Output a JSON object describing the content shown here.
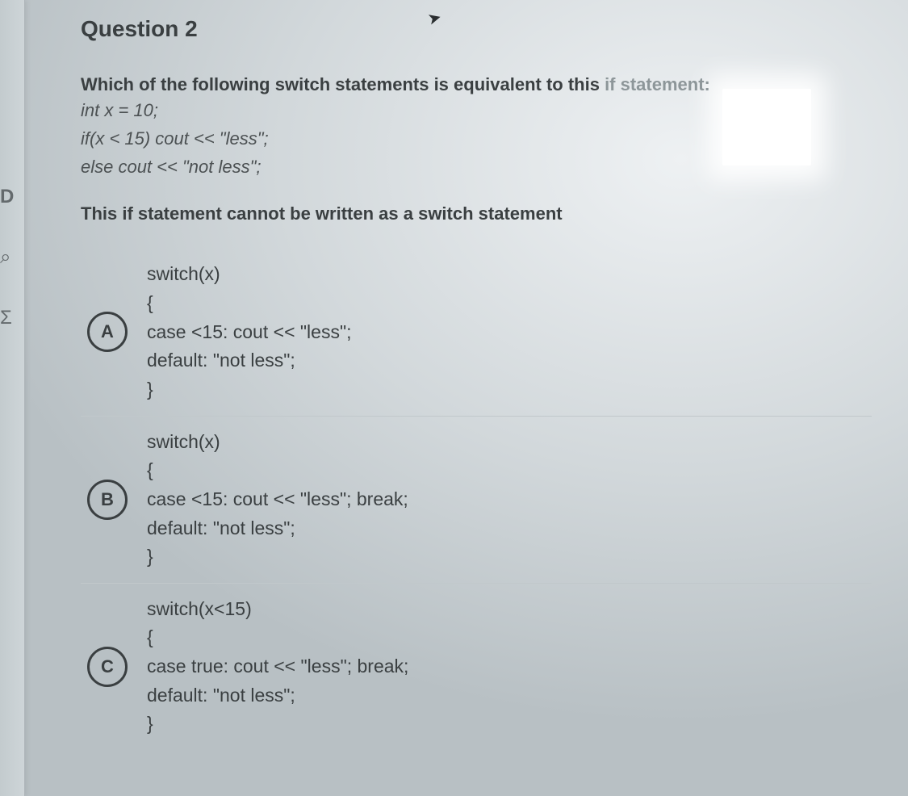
{
  "left_edge": {
    "d": "D",
    "mag": "⌕",
    "sigma": "Σ"
  },
  "cursor_glyph": "➤",
  "title": "Question 2",
  "prompt": {
    "lead": "Which of the following switch statements is equivalent to this ",
    "faded": "if statement:",
    "code1": "int x = 10;",
    "code2": "if(x < 15) cout << \"less\";",
    "code3": "else cout << \"not less\";"
  },
  "stem_note": "This if statement cannot be written as a switch statement",
  "options": [
    {
      "letter": "A",
      "code": "switch(x)\n{\ncase <15: cout << \"less\";\ndefault: \"not less\";\n}"
    },
    {
      "letter": "B",
      "code": "switch(x)\n{\ncase <15: cout << \"less\"; break;\ndefault: \"not less\";\n}"
    },
    {
      "letter": "C",
      "code": "switch(x<15)\n{\ncase true: cout << \"less\"; break;\ndefault: \"not less\";\n}"
    }
  ]
}
